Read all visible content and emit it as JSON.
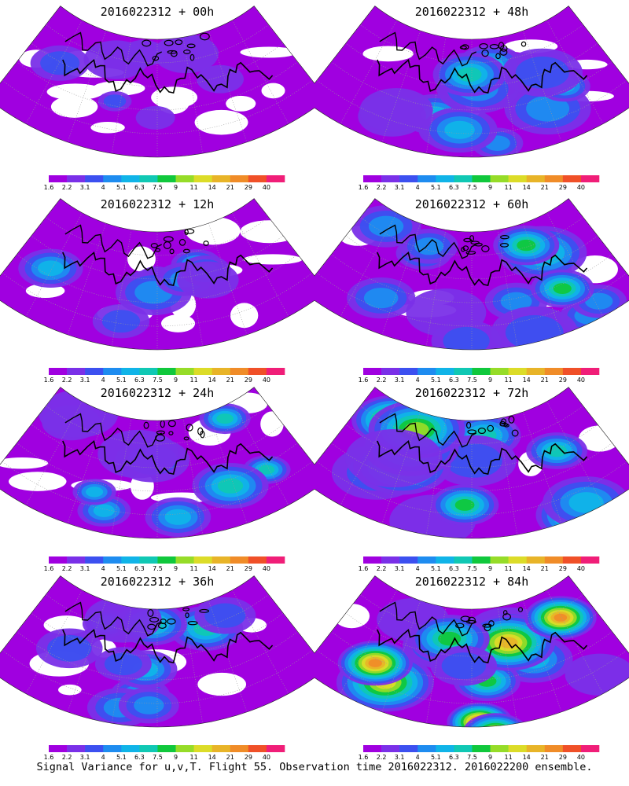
{
  "figure": {
    "caption": "Signal Variance for u,v,T. Flight 55. Observation time 2016022312. 2016022200 ensemble."
  },
  "colorbar": {
    "labels": [
      "1.6",
      "2.2",
      "3.1",
      "4",
      "5.1",
      "6.3",
      "7.5",
      "9",
      "11",
      "14",
      "21",
      "29",
      "40"
    ],
    "colors": [
      "#a000e0",
      "#7a30e8",
      "#3c50f0",
      "#1e8cf0",
      "#10b4e8",
      "#10c8b4",
      "#10c83c",
      "#96dc28",
      "#dcdc28",
      "#e8b428",
      "#f08c28",
      "#f05028",
      "#f01e78"
    ]
  },
  "panels": [
    {
      "title": "2016022312 + 00h",
      "intensity": 0.1
    },
    {
      "title": "2016022312 + 48h",
      "intensity": 0.55
    },
    {
      "title": "2016022312 + 12h",
      "intensity": 0.22
    },
    {
      "title": "2016022312 + 60h",
      "intensity": 0.65
    },
    {
      "title": "2016022312 + 24h",
      "intensity": 0.35
    },
    {
      "title": "2016022312 + 72h",
      "intensity": 0.78
    },
    {
      "title": "2016022312 + 36h",
      "intensity": 0.45
    },
    {
      "title": "2016022312 + 84h",
      "intensity": 0.92
    }
  ]
}
